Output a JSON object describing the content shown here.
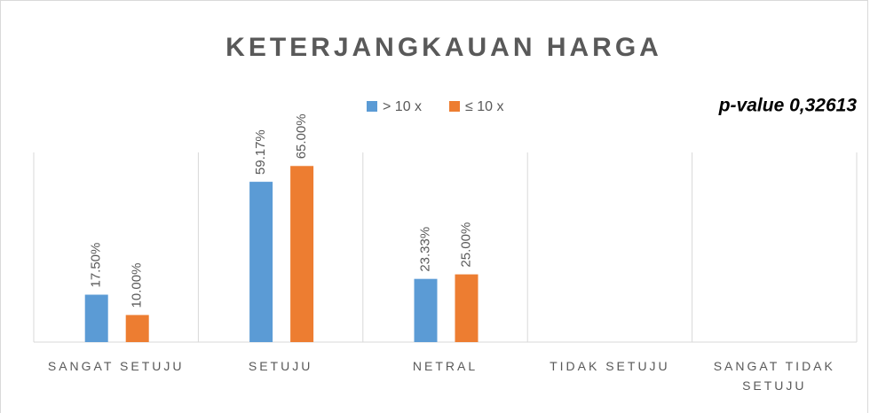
{
  "chart_data": {
    "type": "bar",
    "title": "KETERJANGKAUAN HARGA",
    "annotation": "p-value 0,32613",
    "categories": [
      "SANGAT SETUJU",
      "SETUJU",
      "NETRAL",
      "TIDAK SETUJU",
      "SANGAT TIDAK SETUJU"
    ],
    "series": [
      {
        "name": "> 10 x",
        "color": "#5b9bd5",
        "values": [
          17.5,
          59.17,
          23.33,
          null,
          null
        ],
        "value_labels": [
          "17.50%",
          "59.17%",
          "23.33%",
          null,
          null
        ]
      },
      {
        "name": "≤ 10 x",
        "color": "#ed7d31",
        "values": [
          10,
          65,
          25,
          null,
          null
        ],
        "value_labels": [
          "10.00%",
          "65.00%",
          "25.00%",
          null,
          null
        ]
      }
    ],
    "ylim": [
      0,
      70
    ],
    "legend": "top",
    "grid": true
  }
}
